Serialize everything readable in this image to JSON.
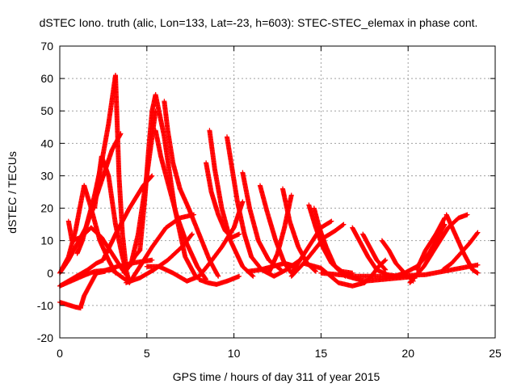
{
  "chart_data": {
    "type": "scatter",
    "title": "dSTEC Iono. truth (alic, Lon=133, Lat=-23, h=603): STEC-STEC_elemax in phase cont.",
    "xlabel": "GPS time / hours of day 311 of year 2015",
    "ylabel": "dSTEC  / TECUs",
    "xlim": [
      0,
      25
    ],
    "ylim": [
      -20,
      70
    ],
    "x_ticks": [
      0,
      5,
      10,
      15,
      20,
      25
    ],
    "y_ticks": [
      -20,
      -10,
      0,
      10,
      20,
      30,
      40,
      50,
      60,
      70
    ],
    "grid": true,
    "marker": "+",
    "color": "#ff0000",
    "series": [
      {
        "x": [
          0.0,
          0.3,
          0.6,
          0.9,
          1.2
        ],
        "y": [
          -9.0,
          -9.5,
          -10.0,
          -10.5,
          -10.8
        ]
      },
      {
        "x": [
          1.2,
          1.4,
          1.8,
          2.1,
          2.6
        ],
        "y": [
          -10.5,
          -7.0,
          -3.0,
          0.0,
          0.5
        ]
      },
      {
        "x": [
          2.6,
          3.3,
          4.3,
          5.3
        ],
        "y": [
          0.8,
          2.0,
          3.2,
          4.0
        ]
      },
      {
        "x": [
          0.0,
          0.8,
          1.6,
          2.1,
          2.5
        ],
        "y": [
          -4.0,
          -1.5,
          1.0,
          3.0,
          4.0
        ]
      },
      {
        "x": [
          2.5,
          3.3,
          4.0,
          4.8,
          5.3
        ],
        "y": [
          4.2,
          13.0,
          20.0,
          27.0,
          30.0
        ]
      },
      {
        "x": [
          0.0,
          0.5,
          1.0,
          1.5,
          2.0,
          2.5,
          3.0,
          3.5
        ],
        "y": [
          0.0,
          4.0,
          9.0,
          14.0,
          22.0,
          30.0,
          38.0,
          43.0
        ]
      },
      {
        "x": [
          0.1,
          0.5,
          0.9,
          1.4
        ],
        "y": [
          1.0,
          5.0,
          13.0,
          27.0
        ]
      },
      {
        "x": [
          1.4,
          1.8,
          2.3,
          2.8,
          3.2
        ],
        "y": [
          27.0,
          20.0,
          10.0,
          4.0,
          0.0
        ]
      },
      {
        "x": [
          0.5,
          0.6,
          0.7
        ],
        "y": [
          16.0,
          13.0,
          10.0
        ]
      },
      {
        "x": [
          0.7,
          1.2,
          1.8,
          2.4,
          3.0,
          3.6,
          3.9
        ],
        "y": [
          10.0,
          11.0,
          14.0,
          11.0,
          6.0,
          1.0,
          -1.0
        ]
      },
      {
        "x": [
          0.0,
          1.5,
          2.0,
          3.0,
          3.5,
          3.9
        ],
        "y": [
          -4.0,
          -0.5,
          0.5,
          1.0,
          -1.0,
          -2.5
        ]
      },
      {
        "x": [
          1.0,
          1.3,
          1.6,
          2.0,
          2.4,
          2.8,
          3.2
        ],
        "y": [
          6.0,
          10.0,
          16.0,
          24.0,
          34.0,
          46.0,
          61.0
        ]
      },
      {
        "x": [
          3.2,
          3.4,
          3.6,
          3.8
        ],
        "y": [
          61.0,
          30.0,
          12.0,
          2.0
        ]
      },
      {
        "x": [
          3.8,
          4.0,
          4.3,
          4.6
        ],
        "y": [
          2.0,
          2.0,
          5.0,
          7.0
        ]
      },
      {
        "x": [
          4.6,
          4.9,
          5.1,
          5.3,
          5.5
        ],
        "y": [
          7.0,
          24.0,
          38.0,
          50.0,
          55.0
        ]
      },
      {
        "x": [
          2.0,
          2.4,
          2.8,
          3.2,
          3.6,
          4.0
        ],
        "y": [
          20.0,
          36.0,
          30.0,
          15.0,
          5.0,
          -3.0
        ]
      },
      {
        "x": [
          3.7,
          4.1,
          4.5,
          5.0,
          5.5
        ],
        "y": [
          0.0,
          3.0,
          12.0,
          30.0,
          50.0
        ]
      },
      {
        "x": [
          5.5,
          6.0,
          6.6,
          7.2,
          7.8
        ],
        "y": [
          55.0,
          42.0,
          20.0,
          5.0,
          -1.0
        ]
      },
      {
        "x": [
          4.0,
          4.6,
          5.3,
          6.1,
          6.9,
          7.7
        ],
        "y": [
          -3.0,
          2.0,
          8.0,
          14.0,
          17.0,
          18.0
        ]
      },
      {
        "x": [
          5.5,
          5.8,
          6.2,
          6.7,
          7.3,
          7.9,
          8.4
        ],
        "y": [
          44.0,
          36.0,
          28.0,
          18.0,
          9.0,
          2.0,
          -2.0
        ]
      },
      {
        "x": [
          6.0,
          6.2,
          6.5,
          6.9
        ],
        "y": [
          53.0,
          44.0,
          34.0,
          26.0
        ]
      },
      {
        "x": [
          6.9,
          7.4,
          8.0,
          8.6,
          9.1
        ],
        "y": [
          26.0,
          20.0,
          12.0,
          4.0,
          -1.0
        ]
      },
      {
        "x": [
          3.8,
          4.6,
          5.4,
          6.2,
          7.0,
          7.6
        ],
        "y": [
          -3.0,
          -1.5,
          1.0,
          4.0,
          8.0,
          12.0
        ]
      },
      {
        "x": [
          5.0,
          5.7,
          6.5,
          7.3,
          8.0
        ],
        "y": [
          2.0,
          2.0,
          0.0,
          -2.5,
          -1.0
        ]
      },
      {
        "x": [
          8.0,
          8.6,
          9.3,
          10.0,
          10.5
        ],
        "y": [
          -1.0,
          3.0,
          8.0,
          14.0,
          22.0
        ]
      },
      {
        "x": [
          8.6,
          8.9,
          9.3,
          9.8,
          10.5,
          11.1
        ],
        "y": [
          44.0,
          32.0,
          20.0,
          10.0,
          2.0,
          -1.0
        ]
      },
      {
        "x": [
          8.4,
          8.7,
          9.1,
          9.5,
          9.9,
          10.3
        ],
        "y": [
          34.0,
          25.0,
          18.0,
          13.0,
          11.0,
          12.0
        ]
      },
      {
        "x": [
          8.0,
          8.5,
          9.0,
          9.6,
          10.3
        ],
        "y": [
          -2.0,
          -3.0,
          -3.5,
          -2.5,
          -1.0
        ]
      },
      {
        "x": [
          9.6,
          9.9,
          10.2,
          10.6,
          11.0
        ],
        "y": [
          42.0,
          32.0,
          22.0,
          12.0,
          5.0
        ]
      },
      {
        "x": [
          11.0,
          11.6,
          12.3,
          13.0,
          13.8
        ],
        "y": [
          5.0,
          1.0,
          -1.0,
          1.0,
          4.0
        ]
      },
      {
        "x": [
          10.5,
          10.9,
          11.4,
          12.0,
          12.7
        ],
        "y": [
          31.0,
          20.0,
          10.0,
          4.0,
          1.0
        ]
      },
      {
        "x": [
          11.5,
          11.9,
          12.4,
          12.9,
          13.3
        ],
        "y": [
          27.0,
          19.0,
          10.0,
          3.0,
          0.0
        ]
      },
      {
        "x": [
          13.3,
          13.8,
          14.4,
          15.0,
          15.6
        ],
        "y": [
          0.0,
          4.0,
          9.0,
          14.0,
          16.0
        ]
      },
      {
        "x": [
          12.8,
          13.2,
          13.7,
          14.2,
          14.7
        ],
        "y": [
          26.0,
          16.0,
          8.0,
          3.0,
          0.5
        ]
      },
      {
        "x": [
          10.8,
          11.5,
          12.2,
          12.9,
          13.6
        ],
        "y": [
          0.5,
          1.0,
          2.0,
          3.0,
          2.0
        ]
      },
      {
        "x": [
          12.0,
          12.5,
          12.9,
          13.3
        ],
        "y": [
          0.0,
          6.0,
          14.0,
          24.0
        ]
      },
      {
        "x": [
          14.3,
          14.7,
          15.1,
          15.6,
          16.2,
          16.8
        ],
        "y": [
          21.0,
          14.0,
          8.0,
          3.0,
          0.5,
          0.0
        ]
      },
      {
        "x": [
          14.6,
          14.9,
          15.3,
          15.8,
          16.4
        ],
        "y": [
          20.0,
          14.0,
          8.0,
          2.0,
          -1.0
        ]
      },
      {
        "x": [
          13.3,
          14.0,
          14.6,
          15.2,
          15.8,
          16.3
        ],
        "y": [
          -1.0,
          3.0,
          7.0,
          11.0,
          13.0,
          15.0
        ]
      },
      {
        "x": [
          14.0,
          15.0,
          16.0,
          16.8,
          17.5
        ],
        "y": [
          3.0,
          1.5,
          -3.0,
          -4.0,
          -3.0
        ]
      },
      {
        "x": [
          17.5,
          17.9,
          18.3,
          18.7
        ],
        "y": [
          -3.0,
          -1.0,
          2.0,
          4.0
        ]
      },
      {
        "x": [
          16.8,
          17.2,
          17.7,
          18.2,
          18.8,
          19.4
        ],
        "y": [
          14.0,
          10.0,
          5.0,
          1.0,
          -0.5,
          -1.0
        ]
      },
      {
        "x": [
          17.4,
          17.8,
          18.2,
          18.7
        ],
        "y": [
          12.0,
          8.0,
          4.0,
          1.0
        ]
      },
      {
        "x": [
          18.5,
          18.9,
          19.3,
          19.8,
          20.3
        ],
        "y": [
          10.0,
          7.0,
          3.0,
          0.0,
          -2.5
        ]
      },
      {
        "x": [
          19.2,
          19.8,
          20.5,
          21.2,
          21.8,
          22.1
        ],
        "y": [
          -1.0,
          0.0,
          2.0,
          6.0,
          12.0,
          15.0
        ]
      },
      {
        "x": [
          20.1,
          20.9,
          21.6,
          22.3,
          22.9,
          23.4
        ],
        "y": [
          -3.0,
          2.0,
          8.0,
          14.0,
          17.0,
          18.0
        ]
      },
      {
        "x": [
          20.5,
          21.0,
          21.6,
          22.1
        ],
        "y": [
          1.0,
          7.0,
          12.0,
          17.0
        ]
      },
      {
        "x": [
          22.2,
          22.7,
          23.2,
          23.7,
          24.0
        ],
        "y": [
          18.0,
          12.0,
          6.0,
          1.0,
          0.0
        ]
      },
      {
        "x": [
          22.0,
          22.5,
          23.0,
          23.5,
          24.0
        ],
        "y": [
          1.0,
          3.0,
          6.0,
          9.0,
          12.5
        ]
      },
      {
        "x": [
          15.0,
          17.0,
          19.0,
          21.0,
          22.5,
          24.0
        ],
        "y": [
          0.0,
          -1.0,
          -1.0,
          -0.5,
          1.0,
          2.5
        ]
      },
      {
        "x": [
          16.5,
          17.5,
          18.5,
          19.5,
          20.5
        ],
        "y": [
          -1.0,
          -2.5,
          -2.0,
          -1.5,
          -1.0
        ]
      }
    ]
  }
}
